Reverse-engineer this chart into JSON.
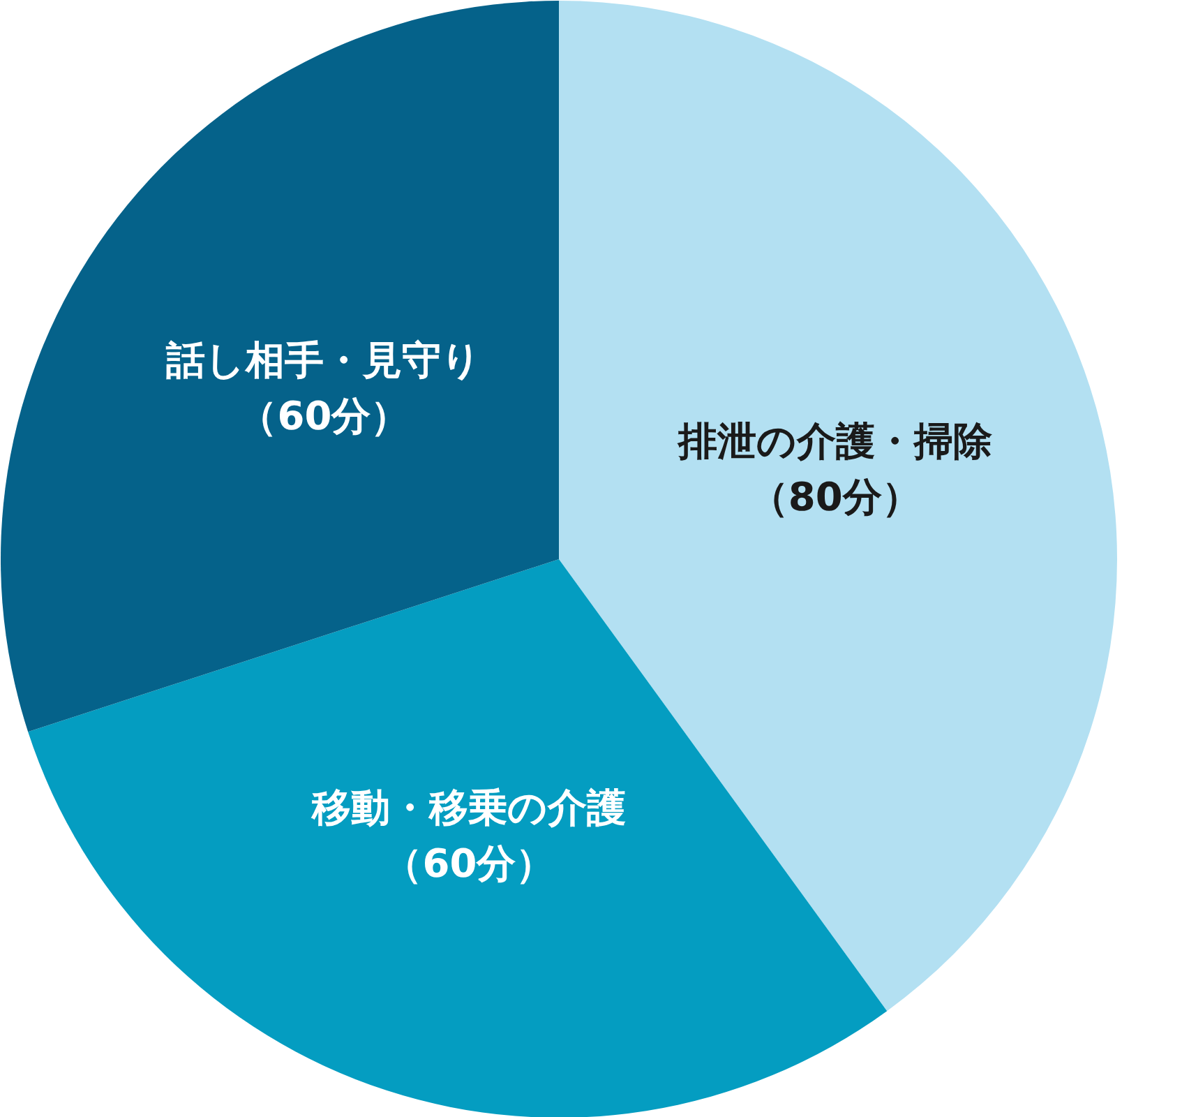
{
  "chart_data": {
    "type": "pie",
    "categories": [
      "排泄の介護・掃除",
      "移動・移乗の介護",
      "話し相手・見守り"
    ],
    "values": [
      80,
      60,
      60
    ],
    "value_labels": [
      "（80分）",
      "（60分）",
      "（60分）"
    ],
    "colors": [
      "#b3e0f2",
      "#049dc1",
      "#05628a"
    ]
  }
}
